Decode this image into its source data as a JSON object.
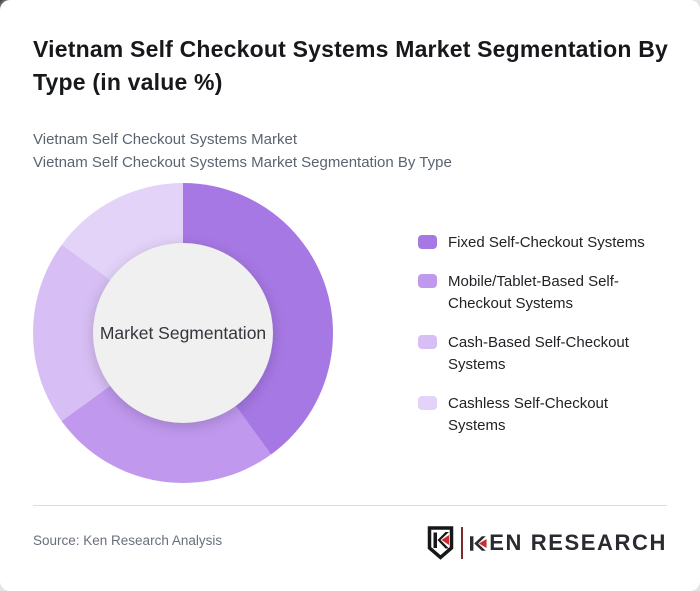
{
  "header": {
    "title": "Vietnam Self Checkout Systems Market Segmentation By Type (in value %)",
    "subtitle_line1": "Vietnam Self Checkout Systems Market",
    "subtitle_line2": "Vietnam Self Checkout Systems Market Segmentation By Type"
  },
  "chart_data": {
    "type": "pie",
    "donut": true,
    "title": "Vietnam Self Checkout Systems Market Segmentation By Type (in value %)",
    "center_label": "Market Segmentation",
    "start_angle_deg": 0,
    "direction": "clockwise",
    "legend_position": "right",
    "categories": [
      "Fixed Self-Checkout Systems",
      "Mobile/Tablet-Based Self-Checkout Systems",
      "Cash-Based Self-Checkout Systems",
      "Cashless Self-Checkout Systems"
    ],
    "values": [
      40,
      25,
      20,
      15
    ],
    "unit": "value %",
    "colors": [
      "#a678e4",
      "#c098ee",
      "#d7bff5",
      "#e3d3f9"
    ],
    "inner_circle_color": "#f0f0f0"
  },
  "footer": {
    "source": "Source: Ken Research Analysis",
    "logo": {
      "brand_full": "KEN RESEARCH",
      "wordmark_rest": "EN RESEARCH",
      "accent_color": "#cb2c30",
      "text_color": "#2a2b31"
    }
  }
}
